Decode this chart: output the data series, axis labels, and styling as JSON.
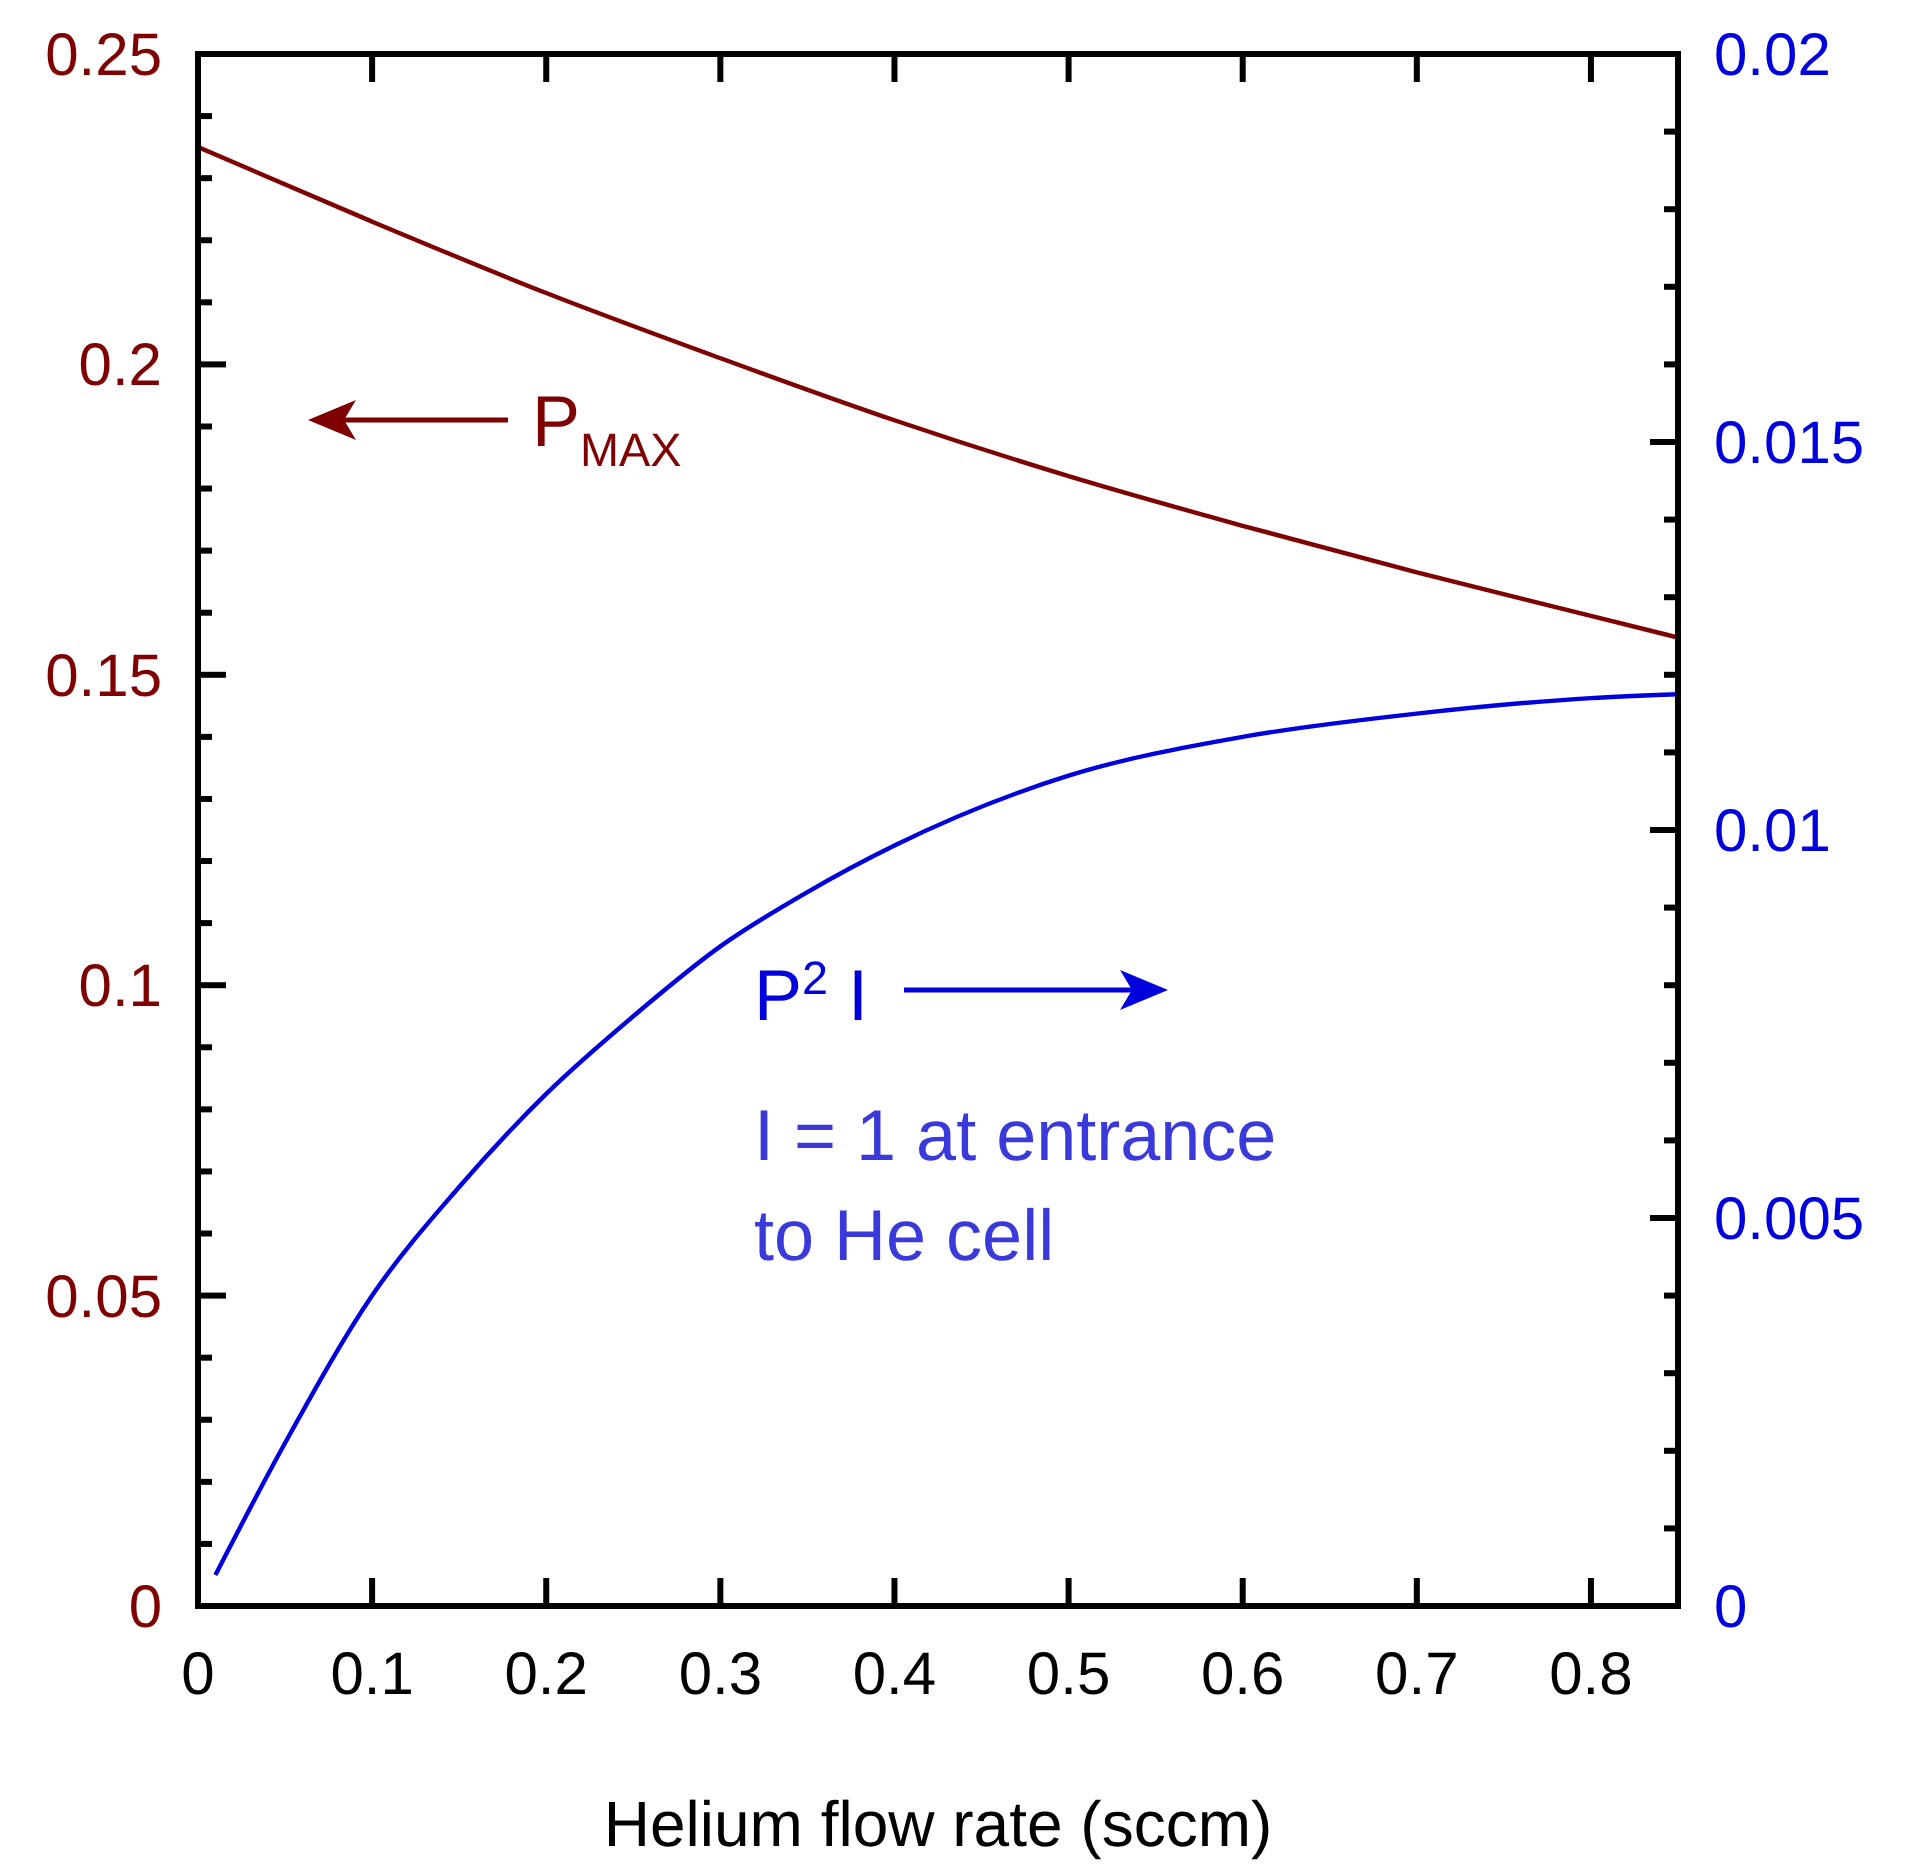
{
  "chart_data": {
    "type": "line",
    "xlabel": "Helium flow rate (sccm)",
    "xlim": [
      0,
      0.85
    ],
    "xticks": [
      0,
      0.1,
      0.2,
      0.3,
      0.4,
      0.5,
      0.6,
      0.7,
      0.8
    ],
    "ylim": [
      0,
      0.25
    ],
    "yticks": [
      0,
      {
        "value": 0.01,
        "label": null
      },
      {
        "value": 0.02,
        "label": null
      },
      {
        "value": 0.03,
        "label": null
      },
      {
        "value": 0.04,
        "label": null
      },
      0.05,
      {
        "value": 0.06,
        "label": null
      },
      {
        "value": 0.07,
        "label": null
      },
      {
        "value": 0.08,
        "label": null
      },
      {
        "value": 0.09,
        "label": null
      },
      0.1,
      {
        "value": 0.11,
        "label": null
      },
      {
        "value": 0.12,
        "label": null
      },
      {
        "value": 0.13,
        "label": null
      },
      {
        "value": 0.14,
        "label": null
      },
      0.15,
      {
        "value": 0.16,
        "label": null
      },
      {
        "value": 0.17,
        "label": null
      },
      {
        "value": 0.18,
        "label": null
      },
      {
        "value": 0.19,
        "label": null
      },
      0.2,
      {
        "value": 0.21,
        "label": null
      },
      {
        "value": 0.22,
        "label": null
      },
      {
        "value": 0.23,
        "label": null
      },
      {
        "value": 0.24,
        "label": null
      },
      0.25
    ],
    "y2lim": [
      0,
      0.02
    ],
    "y2ticks": [
      0,
      {
        "value": 0.001,
        "label": null
      },
      {
        "value": 0.002,
        "label": null
      },
      {
        "value": 0.003,
        "label": null
      },
      {
        "value": 0.004,
        "label": null
      },
      0.005,
      {
        "value": 0.006,
        "label": null
      },
      {
        "value": 0.007,
        "label": null
      },
      {
        "value": 0.008,
        "label": null
      },
      {
        "value": 0.009,
        "label": null
      },
      0.01,
      {
        "value": 0.011,
        "label": null
      },
      {
        "value": 0.012,
        "label": null
      },
      {
        "value": 0.013,
        "label": null
      },
      {
        "value": 0.014,
        "label": null
      },
      0.015,
      {
        "value": 0.016,
        "label": null
      },
      {
        "value": 0.017,
        "label": null
      },
      {
        "value": 0.018,
        "label": null
      },
      {
        "value": 0.019,
        "label": null
      },
      0.02
    ],
    "grid": false,
    "series": [
      {
        "color": "#7f0000",
        "x": [
          0,
          0.1,
          0.2,
          0.3,
          0.4,
          0.5,
          0.6,
          0.7,
          0.8,
          0.85
        ],
        "values": [
          0.235,
          0.223,
          0.2115,
          0.201,
          0.191,
          0.182,
          0.174,
          0.1665,
          0.1595,
          0.156
        ]
      },
      {
        "color": "#0000dd",
        "axis": "y2",
        "x": [
          0.01,
          0.05,
          0.1,
          0.15,
          0.2,
          0.25,
          0.3,
          0.35,
          0.4,
          0.5,
          0.6,
          0.7,
          0.8,
          0.85
        ],
        "values": [
          0.0004,
          0.0021,
          0.004,
          0.0054,
          0.0066,
          0.0076,
          0.0085,
          0.0092,
          0.0098,
          0.0107,
          0.0112,
          0.0115,
          0.0117,
          0.01175
        ]
      }
    ],
    "annotations": [
      "P$_{MAX}$",
      "P$^{2}$ I",
      "I = 1 at entrance\nto He cell"
    ]
  }
}
